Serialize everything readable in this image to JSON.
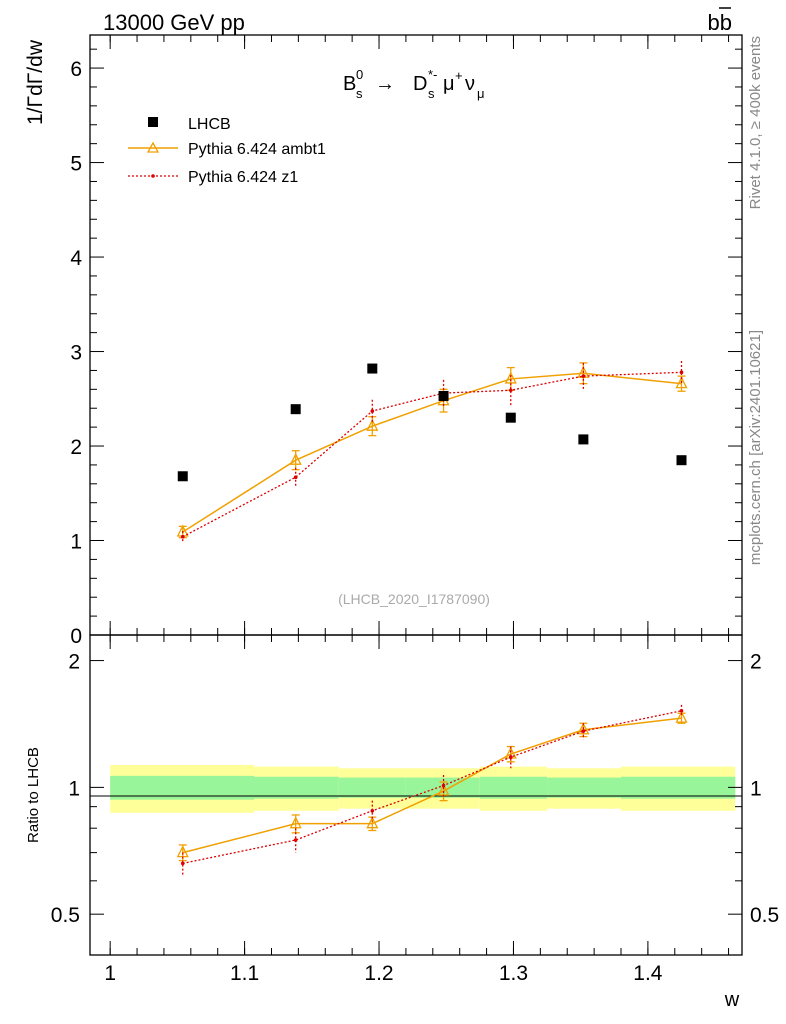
{
  "header": {
    "energy_label": "13000 GeV pp",
    "process_label": "bb"
  },
  "side": {
    "rivet_label": "Rivet 4.1.0, ≥ 400k events",
    "mcplots_label": "mcplots.cern.ch [arXiv:2401.10621]"
  },
  "chart_data": [
    {
      "type": "scatter",
      "panel": "main",
      "title": "B_s^0 → D_s^{*-} μ^+ ν_μ",
      "title_parts": {
        "b": "B",
        "b_sub": "s",
        "b_sup": "0",
        "arrow": "→",
        "d": "D",
        "d_sub": "s",
        "d_sup": "*-",
        "mu": "μ",
        "mu_sup": "+",
        "nu": "ν",
        "nu_sub": "μ"
      },
      "ylabel": "1/ΓdΓ/dw",
      "xlabel": "w",
      "analysis_id": "(LHCB_2020_I1787090)",
      "xlim": [
        0.985,
        1.47
      ],
      "ylim": [
        0,
        6.35
      ],
      "x_ticks": [
        "1",
        "1.1",
        "1.2",
        "1.3",
        "1.4"
      ],
      "x_tick_values": [
        1,
        1.1,
        1.2,
        1.3,
        1.4
      ],
      "y_ticks": [
        "0",
        "1",
        "2",
        "3",
        "4",
        "5",
        "6"
      ],
      "y_tick_values": [
        0,
        1,
        2,
        3,
        4,
        5,
        6
      ],
      "legend_position": "top-left",
      "series": [
        {
          "name": "LHCB",
          "style": "markers",
          "color": "#000000",
          "x": [
            1.054,
            1.138,
            1.195,
            1.248,
            1.298,
            1.352,
            1.425
          ],
          "y": [
            1.68,
            2.39,
            2.82,
            2.53,
            2.3,
            2.07,
            1.85
          ],
          "yerr": [
            0.03,
            0.03,
            0.03,
            0.03,
            0.03,
            0.03,
            0.03
          ]
        },
        {
          "name": "Pythia 6.424 ambt1",
          "style": "line-triangles",
          "color": "#f0a000",
          "x": [
            1.054,
            1.138,
            1.195,
            1.248,
            1.298,
            1.352,
            1.425
          ],
          "y": [
            1.09,
            1.85,
            2.21,
            2.48,
            2.71,
            2.77,
            2.66
          ],
          "yerr": [
            0.06,
            0.1,
            0.1,
            0.12,
            0.12,
            0.11,
            0.08
          ]
        },
        {
          "name": "Pythia 6.424 z1",
          "style": "dotted-dots",
          "color": "#dd0000",
          "x": [
            1.054,
            1.138,
            1.195,
            1.248,
            1.298,
            1.352,
            1.425
          ],
          "y": [
            1.04,
            1.67,
            2.37,
            2.56,
            2.59,
            2.74,
            2.78
          ],
          "yerr": [
            0.06,
            0.1,
            0.12,
            0.14,
            0.16,
            0.14,
            0.12
          ]
        }
      ]
    },
    {
      "type": "scatter",
      "panel": "ratio",
      "ylabel": "Ratio to LHCB",
      "xlabel": "w",
      "xlim": [
        0.985,
        1.47
      ],
      "ylim": [
        0.4,
        2.3
      ],
      "y_ticks": [
        "0.5",
        "1",
        "2"
      ],
      "y_tick_values": [
        0.5,
        1,
        2
      ],
      "bands": {
        "bin_edges": [
          1.0,
          1.107,
          1.17,
          1.22,
          1.275,
          1.325,
          1.38,
          1.465
        ],
        "inner_color": "#99f599",
        "outer_color": "#ffff99",
        "inner_half_width": [
          0.065,
          0.06,
          0.055,
          0.055,
          0.06,
          0.055,
          0.06
        ],
        "outer_half_width": [
          0.13,
          0.12,
          0.11,
          0.11,
          0.12,
          0.11,
          0.12
        ]
      },
      "series": [
        {
          "name": "Pythia 6.424 ambt1",
          "style": "line-triangles",
          "color": "#f0a000",
          "x": [
            1.054,
            1.138,
            1.195,
            1.248,
            1.298,
            1.352,
            1.425
          ],
          "y": [
            0.7,
            0.82,
            0.82,
            0.98,
            1.2,
            1.37,
            1.46
          ],
          "yerr": [
            0.03,
            0.04,
            0.03,
            0.05,
            0.05,
            0.05,
            0.04
          ]
        },
        {
          "name": "Pythia 6.424 z1",
          "style": "dotted-dots",
          "color": "#dd0000",
          "x": [
            1.054,
            1.138,
            1.195,
            1.248,
            1.298,
            1.352,
            1.425
          ],
          "y": [
            0.66,
            0.75,
            0.88,
            1.01,
            1.18,
            1.36,
            1.52
          ],
          "yerr": [
            0.04,
            0.05,
            0.05,
            0.06,
            0.07,
            0.06,
            0.05
          ]
        }
      ]
    }
  ]
}
